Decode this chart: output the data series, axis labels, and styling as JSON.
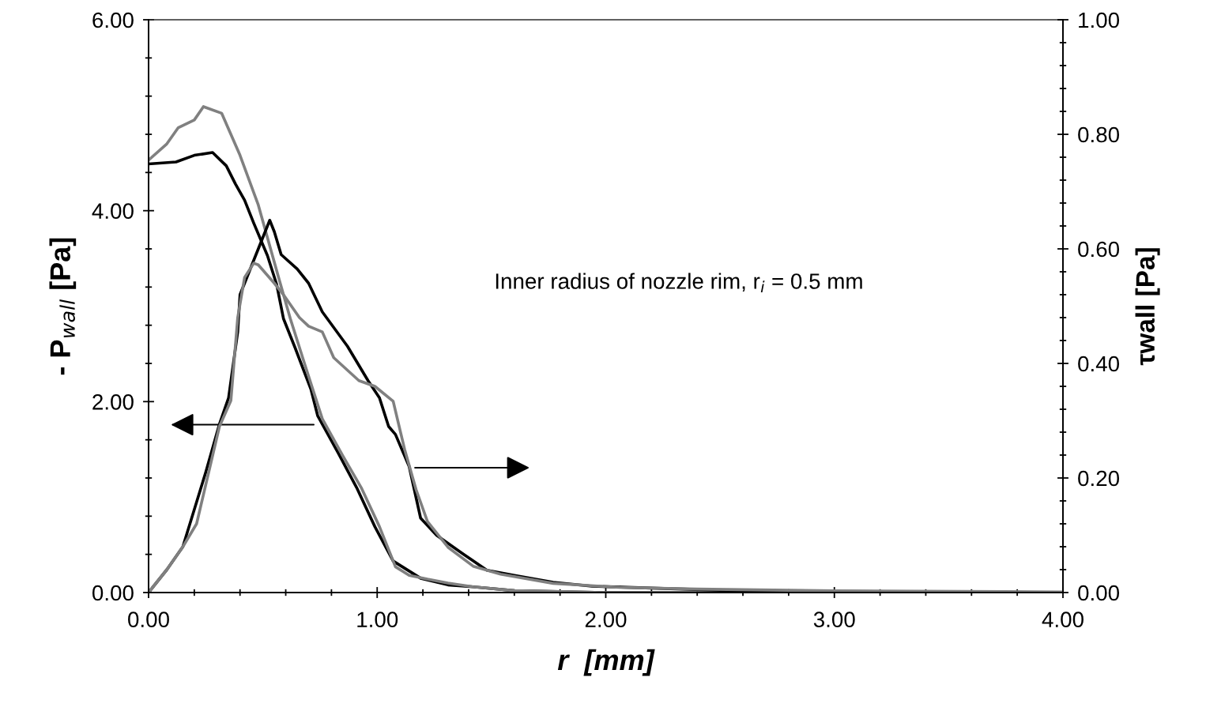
{
  "chart_data": {
    "type": "line",
    "xlabel": "r  [mm]",
    "ylabel": "- P$_{wall}$ [Pa]",
    "y2label": "τwall [Pa]",
    "annotations": [
      "Inner radius of nozzle rim, r$_{i}$ = 0.5 mm"
    ],
    "xlim": [
      0,
      4
    ],
    "xticks": [
      {
        "value": 0,
        "label": "0.00"
      },
      {
        "value": 1,
        "label": "1.00"
      },
      {
        "value": 2,
        "label": "2.00"
      },
      {
        "value": 3,
        "label": "3.00"
      },
      {
        "value": 4,
        "label": "4.00"
      }
    ],
    "ylim": [
      0,
      6
    ],
    "yticks": [
      {
        "value": 0,
        "label": "0.00"
      },
      {
        "value": 2,
        "label": "2.00"
      },
      {
        "value": 4,
        "label": "4.00"
      },
      {
        "value": 6,
        "label": "6.00"
      }
    ],
    "y2lim": [
      0,
      1
    ],
    "y2ticks": [
      {
        "value": 0,
        "label": "0.00"
      },
      {
        "value": 0.2,
        "label": "0.20"
      },
      {
        "value": 0.4,
        "label": "0.40"
      },
      {
        "value": 0.6,
        "label": "0.60"
      },
      {
        "value": 0.8,
        "label": "0.80"
      },
      {
        "value": 1,
        "label": "1.00"
      }
    ],
    "grid": false,
    "marker": "none",
    "line_style": "solid",
    "series": [
      {
        "color": "#000000",
        "x": [
          0,
          0.12,
          0.2,
          0.28,
          0.34,
          0.38,
          0.42,
          0.46,
          0.52,
          0.56,
          0.59,
          0.64,
          0.71,
          0.74,
          0.83,
          0.91,
          0.99,
          1.07,
          1.11,
          1.19,
          1.31,
          1.42,
          1.6,
          2.0,
          4.0
        ],
        "values": [
          4.49,
          4.51,
          4.58,
          4.61,
          4.47,
          4.28,
          4.11,
          3.87,
          3.53,
          3.23,
          2.87,
          2.57,
          2.13,
          1.85,
          1.46,
          1.1,
          0.69,
          0.33,
          0.27,
          0.15,
          0.08,
          0.06,
          0.02,
          0,
          0
        ]
      },
      {
        "color": "#808080",
        "x": [
          0,
          0.08,
          0.13,
          0.2,
          0.24,
          0.32,
          0.4,
          0.48,
          0.57,
          0.62,
          0.69,
          0.76,
          0.85,
          0.93,
          1.01,
          1.08,
          1.14,
          1.22,
          1.31,
          1.42,
          1.6,
          2.0,
          4.0
        ],
        "values": [
          4.53,
          4.7,
          4.87,
          4.95,
          5.09,
          5.02,
          4.58,
          4.06,
          3.29,
          2.87,
          2.34,
          1.82,
          1.43,
          1.1,
          0.69,
          0.27,
          0.18,
          0.14,
          0.1,
          0.06,
          0.02,
          0,
          0
        ]
      },
      {
        "color": "#000000",
        "axis": "y2",
        "x": [
          0,
          0.08,
          0.15,
          0.25,
          0.31,
          0.35,
          0.39,
          0.4,
          0.43,
          0.46,
          0.48,
          0.53,
          0.55,
          0.58,
          0.65,
          0.7,
          0.76,
          0.87,
          0.96,
          1.01,
          1.05,
          1.08,
          1.14,
          1.19,
          1.26,
          1.37,
          1.48,
          1.6,
          1.77,
          1.94,
          2.5,
          3.0,
          4.0
        ],
        "values": [
          0,
          0.04,
          0.08,
          0.21,
          0.294,
          0.34,
          0.455,
          0.52,
          0.55,
          0.58,
          0.6,
          0.65,
          0.63,
          0.59,
          0.565,
          0.54,
          0.49,
          0.43,
          0.37,
          0.34,
          0.29,
          0.276,
          0.22,
          0.13,
          0.1,
          0.069,
          0.039,
          0.03,
          0.018,
          0.011,
          0.004,
          0.002,
          0
        ]
      },
      {
        "color": "#808080",
        "axis": "y2",
        "x": [
          0,
          0.08,
          0.15,
          0.21,
          0.31,
          0.36,
          0.39,
          0.42,
          0.46,
          0.48,
          0.55,
          0.59,
          0.66,
          0.7,
          0.76,
          0.81,
          0.92,
          0.99,
          1.07,
          1.12,
          1.17,
          1.22,
          1.31,
          1.42,
          1.54,
          1.77,
          2.06,
          2.4,
          3.0,
          4.0
        ],
        "values": [
          0,
          0.04,
          0.08,
          0.12,
          0.29,
          0.335,
          0.48,
          0.55,
          0.575,
          0.572,
          0.54,
          0.52,
          0.48,
          0.465,
          0.455,
          0.41,
          0.37,
          0.36,
          0.334,
          0.25,
          0.18,
          0.124,
          0.079,
          0.046,
          0.032,
          0.016,
          0.009,
          0.006,
          0.003,
          0.001
        ]
      }
    ]
  }
}
